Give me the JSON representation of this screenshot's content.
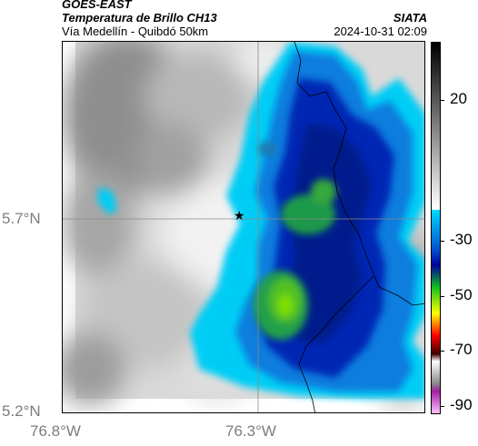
{
  "header": {
    "title_line1": "GOES-EAST",
    "title_line2": "Temperatura de Brillo CH13",
    "subtitle": "Vía Medellín - Quibdó 50km",
    "org": "SIATA",
    "timestamp": "2024-10-31 02:09"
  },
  "axes": {
    "lat_ticks": [
      "5.7°N",
      "5.2°N"
    ],
    "lon_ticks": [
      "76.8°W",
      "76.3°W"
    ]
  },
  "colorbar": {
    "ticks": [
      "20",
      "-30",
      "-50",
      "-70",
      "-90"
    ],
    "colors": [
      "#000000",
      "#ffffff",
      "#00d8ff",
      "#0000a0",
      "#10c020",
      "#ffff00",
      "#ff0000",
      "#400000",
      "#ffffff",
      "#a020a0"
    ]
  },
  "marker": {
    "icon": "star-icon"
  }
}
